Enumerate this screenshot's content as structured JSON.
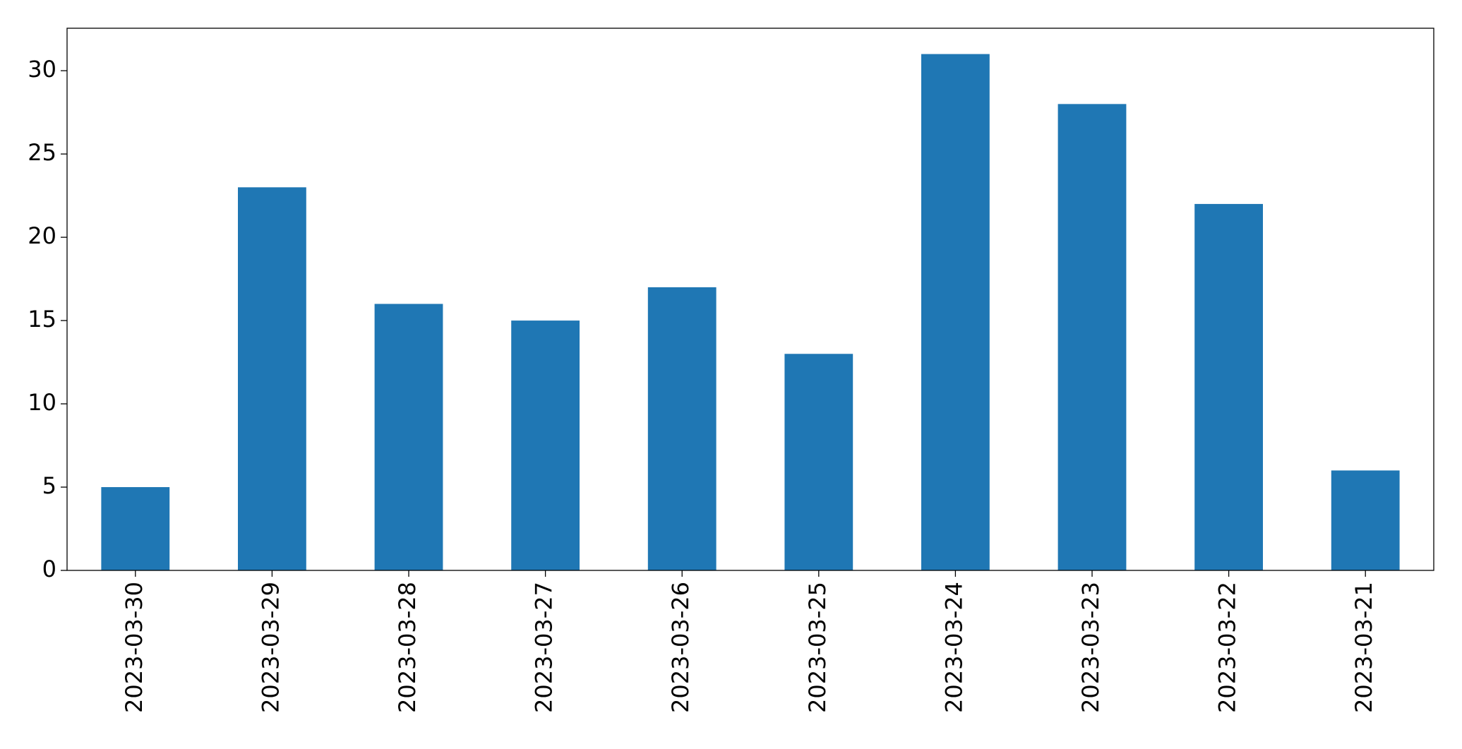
{
  "chart_data": {
    "type": "bar",
    "categories": [
      "2023-03-30",
      "2023-03-29",
      "2023-03-28",
      "2023-03-27",
      "2023-03-26",
      "2023-03-25",
      "2023-03-24",
      "2023-03-23",
      "2023-03-22",
      "2023-03-21"
    ],
    "values": [
      5,
      23,
      16,
      15,
      17,
      13,
      31,
      28,
      22,
      6
    ],
    "color": "#1f77b4",
    "ylim": [
      0,
      32.55
    ],
    "yticks": [
      0,
      5,
      10,
      15,
      20,
      25,
      30
    ],
    "grid": false
  }
}
